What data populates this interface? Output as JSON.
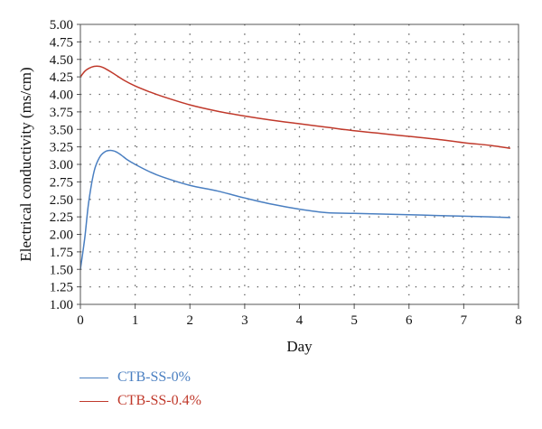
{
  "chart_data": {
    "type": "line",
    "title": "",
    "xlabel": "Day",
    "ylabel": "Electrical conductivity (ms/cm)",
    "xlim": [
      0,
      8
    ],
    "ylim": [
      1.0,
      5.0
    ],
    "x_ticks": [
      "0",
      "1",
      "2",
      "3",
      "4",
      "5",
      "6",
      "7",
      "8"
    ],
    "y_ticks": [
      "1.00",
      "1.25",
      "1.50",
      "1.75",
      "2.00",
      "2.25",
      "2.50",
      "2.75",
      "3.00",
      "3.25",
      "3.50",
      "3.75",
      "4.00",
      "4.25",
      "4.50",
      "4.75",
      "5.00"
    ],
    "grid": true,
    "legend_position": "bottom-left",
    "series": [
      {
        "name": "CTB-SS-0%",
        "color": "#4a7fc1",
        "points": [
          [
            0,
            1.5
          ],
          [
            0.08,
            1.95
          ],
          [
            0.15,
            2.45
          ],
          [
            0.25,
            2.9
          ],
          [
            0.35,
            3.1
          ],
          [
            0.45,
            3.18
          ],
          [
            0.55,
            3.2
          ],
          [
            0.65,
            3.18
          ],
          [
            0.75,
            3.13
          ],
          [
            0.85,
            3.07
          ],
          [
            1.0,
            3.0
          ],
          [
            1.25,
            2.9
          ],
          [
            1.5,
            2.82
          ],
          [
            2.0,
            2.7
          ],
          [
            2.5,
            2.62
          ],
          [
            3.0,
            2.52
          ],
          [
            3.5,
            2.43
          ],
          [
            4.0,
            2.36
          ],
          [
            4.5,
            2.31
          ],
          [
            5.0,
            2.3
          ],
          [
            5.5,
            2.29
          ],
          [
            6.0,
            2.28
          ],
          [
            6.5,
            2.27
          ],
          [
            7.0,
            2.26
          ],
          [
            7.5,
            2.25
          ],
          [
            7.85,
            2.24
          ]
        ]
      },
      {
        "name": "CTB-SS-0.4%",
        "color": "#c0392b",
        "points": [
          [
            0,
            4.25
          ],
          [
            0.08,
            4.33
          ],
          [
            0.15,
            4.37
          ],
          [
            0.25,
            4.4
          ],
          [
            0.35,
            4.4
          ],
          [
            0.45,
            4.37
          ],
          [
            0.6,
            4.3
          ],
          [
            0.8,
            4.2
          ],
          [
            1.0,
            4.12
          ],
          [
            1.25,
            4.04
          ],
          [
            1.5,
            3.97
          ],
          [
            2.0,
            3.85
          ],
          [
            2.5,
            3.76
          ],
          [
            3.0,
            3.69
          ],
          [
            3.5,
            3.63
          ],
          [
            4.0,
            3.58
          ],
          [
            4.5,
            3.53
          ],
          [
            5.0,
            3.48
          ],
          [
            5.5,
            3.44
          ],
          [
            6.0,
            3.4
          ],
          [
            6.5,
            3.36
          ],
          [
            7.0,
            3.31
          ],
          [
            7.5,
            3.27
          ],
          [
            7.85,
            3.23
          ]
        ]
      }
    ]
  }
}
